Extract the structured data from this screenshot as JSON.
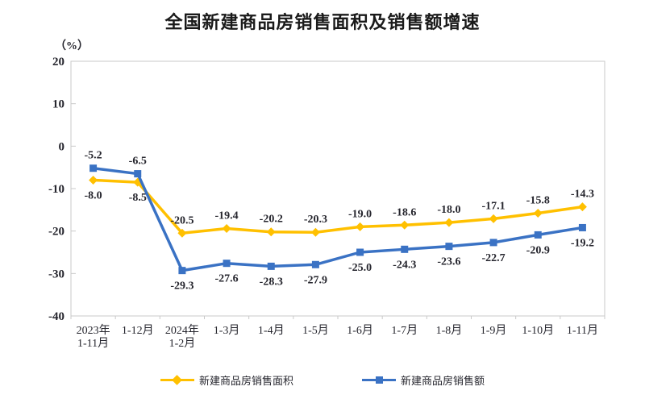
{
  "title": "全国新建商品房销售面积及销售额增速",
  "y_axis_unit": "（%）",
  "colors": {
    "area_series": "#FFC000",
    "amount_series": "#3A72C4",
    "axis_line": "#C9C9C9",
    "text": "#26262e",
    "title_text": "#1a1a1a"
  },
  "chart_data": {
    "type": "line",
    "title": "全国新建商品房销售面积及销售额增速",
    "ylabel": "（%）",
    "xlabel": "",
    "ylim": [
      -40,
      20
    ],
    "y_ticks": [
      20,
      10,
      0,
      -10,
      -20,
      -30,
      -40
    ],
    "grid": false,
    "legend_position": "bottom",
    "categories": [
      "2023年\n1-11月",
      "1-12月",
      "2024年\n1-2月",
      "1-3月",
      "1-4月",
      "1-5月",
      "1-6月",
      "1-7月",
      "1-8月",
      "1-9月",
      "1-10月",
      "1-11月"
    ],
    "series": [
      {
        "name": "新建商品房销售面积",
        "color": "#FFC000",
        "marker": "diamond",
        "values": [
          -8.0,
          -8.5,
          -20.5,
          -19.4,
          -20.2,
          -20.3,
          -19.0,
          -18.6,
          -18.0,
          -17.1,
          -15.8,
          -14.3
        ],
        "labels": [
          "-8.0",
          "-8.5",
          "-20.5",
          "-19.4",
          "-20.2",
          "-20.3",
          "-19.0",
          "-18.6",
          "-18.0",
          "-17.1",
          "-15.8",
          "-14.3"
        ],
        "label_side": [
          "below",
          "below",
          "above",
          "above",
          "above",
          "above",
          "above",
          "above",
          "above",
          "above",
          "above",
          "above"
        ]
      },
      {
        "name": "新建商品房销售额",
        "color": "#3A72C4",
        "marker": "square",
        "values": [
          -5.2,
          -6.5,
          -29.3,
          -27.6,
          -28.3,
          -27.9,
          -25.0,
          -24.3,
          -23.6,
          -22.7,
          -20.9,
          -19.2
        ],
        "labels": [
          "-5.2",
          "-6.5",
          "-29.3",
          "-27.6",
          "-28.3",
          "-27.9",
          "-25.0",
          "-24.3",
          "-23.6",
          "-22.7",
          "-20.9",
          "-19.2"
        ],
        "label_side": [
          "above",
          "above",
          "below",
          "below",
          "below",
          "below",
          "below",
          "below",
          "below",
          "below",
          "below",
          "below"
        ]
      }
    ]
  }
}
